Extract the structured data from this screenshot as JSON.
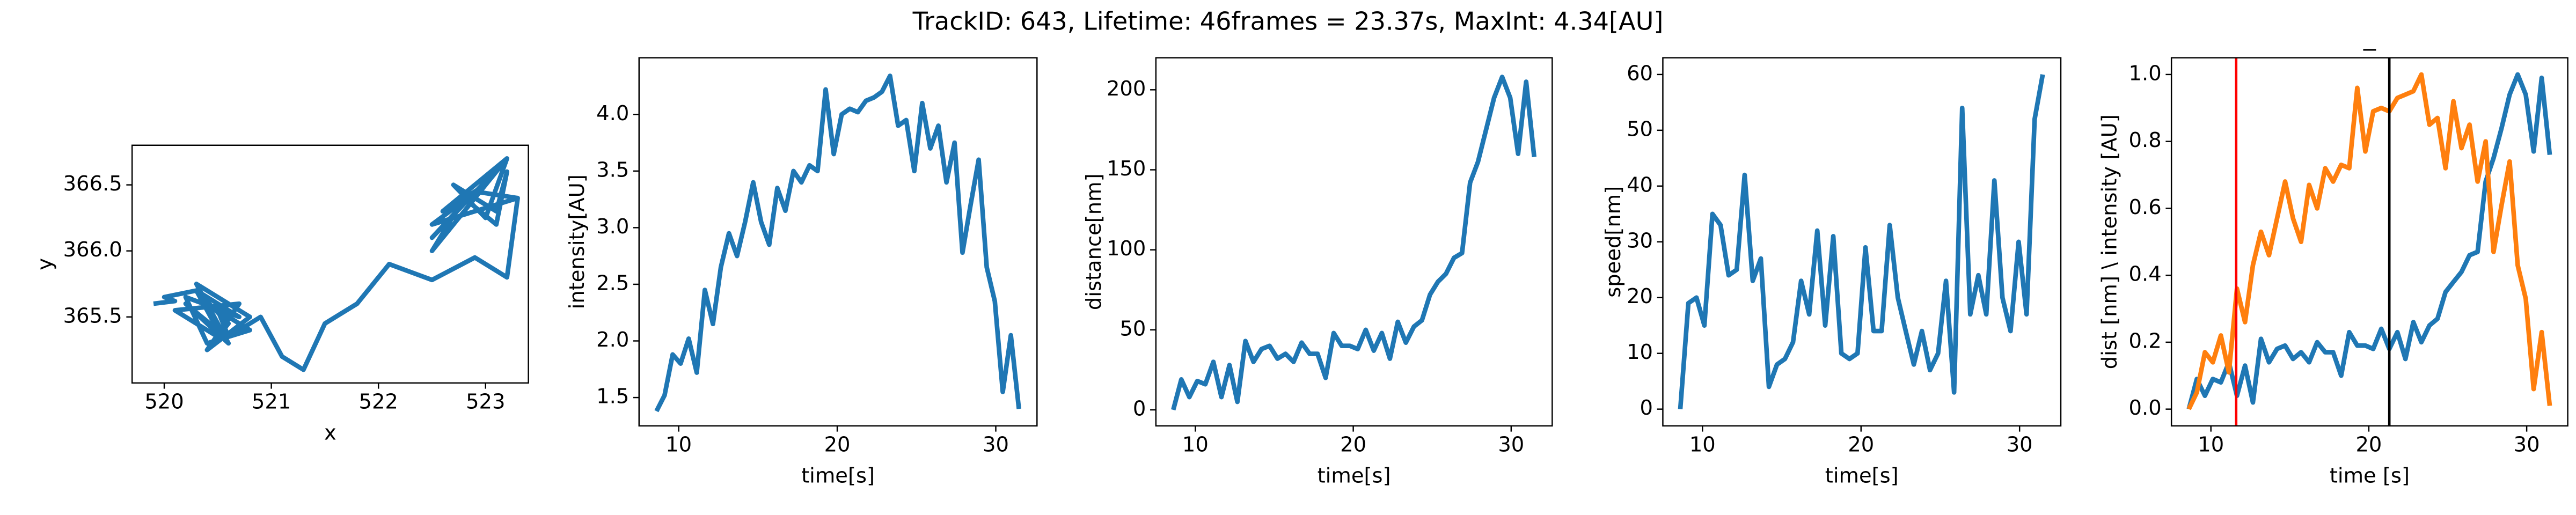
{
  "title": "TrackID: 643, Lifetime: 46frames = 23.37s, MaxInt: 4.34[AU]",
  "chart_data": [
    {
      "type": "line",
      "x_label": "x",
      "y_label": "y",
      "x": [
        519.9,
        520.1,
        520.0,
        520.3,
        520.5,
        520.2,
        520.6,
        520.3,
        520.8,
        520.4,
        520.7,
        520.1,
        520.5,
        520.6,
        520.3,
        520.7,
        520.2,
        520.4,
        520.8,
        520.5,
        520.6,
        520.9,
        521.1,
        521.3,
        521.5,
        521.8,
        522.1,
        522.5,
        522.9,
        523.2,
        523.3,
        522.5,
        523.0,
        522.6,
        523.2,
        522.5,
        522.8,
        523.1,
        523.2,
        523.1,
        522.7,
        523.0,
        523.2,
        522.5,
        522.9,
        523.3
      ],
      "series": [
        {
          "color": "#1f77b4",
          "values": [
            365.6,
            365.62,
            365.65,
            365.7,
            365.4,
            365.6,
            365.3,
            365.75,
            365.5,
            365.25,
            365.6,
            365.55,
            365.35,
            365.45,
            365.7,
            365.5,
            365.65,
            365.3,
            365.4,
            365.55,
            365.35,
            365.5,
            365.2,
            365.1,
            365.45,
            365.6,
            365.9,
            365.78,
            365.95,
            365.8,
            366.4,
            366.2,
            366.5,
            366.3,
            366.7,
            366.0,
            366.4,
            366.2,
            366.6,
            366.3,
            366.5,
            366.25,
            366.7,
            366.1,
            366.45,
            366.4
          ]
        }
      ],
      "xlim": [
        519.7,
        523.4
      ],
      "xticks": [
        520,
        521,
        522,
        523
      ],
      "ylim": [
        365.0,
        366.8
      ],
      "yticks": [
        365.5,
        {
          "value": 366,
          "label": "366.0"
        },
        366.5
      ]
    },
    {
      "type": "line",
      "x_label": "time[s]",
      "y_label": "intensity[AU]",
      "x": [
        8.6,
        9.11,
        9.62,
        10.12,
        10.63,
        11.14,
        11.65,
        12.16,
        12.66,
        13.17,
        13.68,
        14.19,
        14.7,
        15.2,
        15.71,
        16.22,
        16.73,
        17.24,
        17.74,
        18.25,
        18.76,
        19.27,
        19.78,
        20.28,
        20.79,
        21.3,
        21.81,
        22.32,
        22.82,
        23.33,
        23.84,
        24.35,
        24.86,
        25.36,
        25.87,
        26.38,
        26.89,
        27.4,
        27.9,
        28.41,
        28.92,
        29.43,
        29.94,
        30.44,
        30.95,
        31.46
      ],
      "series": [
        {
          "color": "#1f77b4",
          "values": [
            1.38,
            1.52,
            1.88,
            1.8,
            2.02,
            1.72,
            2.45,
            2.15,
            2.65,
            2.95,
            2.75,
            3.05,
            3.4,
            3.05,
            2.85,
            3.35,
            3.15,
            3.5,
            3.4,
            3.55,
            3.5,
            4.22,
            3.65,
            4.0,
            4.05,
            4.02,
            4.12,
            4.15,
            4.2,
            4.34,
            3.9,
            3.95,
            3.5,
            4.1,
            3.7,
            3.9,
            3.4,
            3.75,
            2.78,
            3.2,
            3.6,
            2.65,
            2.35,
            1.55,
            2.05,
            1.4
          ]
        }
      ],
      "xlim": [
        7.5,
        32.6
      ],
      "xticks": [
        10,
        20,
        30
      ],
      "ylim": [
        1.25,
        4.5
      ],
      "yticks": [
        1.5,
        {
          "value": 2,
          "label": "2.0"
        },
        2.5,
        {
          "value": 3,
          "label": "3.0"
        },
        3.5,
        {
          "value": 4,
          "label": "4.0"
        }
      ]
    },
    {
      "type": "line",
      "x_label": "time[s]",
      "y_label": "distance[nm]",
      "x": [
        8.6,
        9.11,
        9.62,
        10.12,
        10.63,
        11.14,
        11.65,
        12.16,
        12.66,
        13.17,
        13.68,
        14.19,
        14.7,
        15.2,
        15.71,
        16.22,
        16.73,
        17.24,
        17.74,
        18.25,
        18.76,
        19.27,
        19.78,
        20.28,
        20.79,
        21.3,
        21.81,
        22.32,
        22.82,
        23.33,
        23.84,
        24.35,
        24.86,
        25.36,
        25.87,
        26.38,
        26.89,
        27.4,
        27.9,
        28.41,
        28.92,
        29.43,
        29.94,
        30.44,
        30.95,
        31.46
      ],
      "series": [
        {
          "color": "#1f77b4",
          "values": [
            0,
            19,
            8,
            18,
            16,
            30,
            8,
            28,
            5,
            43,
            30,
            38,
            40,
            32,
            35,
            30,
            42,
            35,
            35,
            20,
            48,
            40,
            40,
            38,
            50,
            37,
            48,
            32,
            55,
            42,
            52,
            56,
            72,
            80,
            85,
            95,
            98,
            142,
            155,
            175,
            195,
            208,
            195,
            160,
            205,
            158
          ]
        }
      ],
      "xlim": [
        7.5,
        32.6
      ],
      "xticks": [
        10,
        20,
        30
      ],
      "ylim": [
        -10,
        220
      ],
      "yticks": [
        0,
        50,
        100,
        150,
        200
      ]
    },
    {
      "type": "line",
      "x_label": "time[s]",
      "y_label": "speed[nm]",
      "x": [
        8.6,
        9.11,
        9.62,
        10.12,
        10.63,
        11.14,
        11.65,
        12.16,
        12.66,
        13.17,
        13.68,
        14.19,
        14.7,
        15.2,
        15.71,
        16.22,
        16.73,
        17.24,
        17.74,
        18.25,
        18.76,
        19.27,
        19.78,
        20.28,
        20.79,
        21.3,
        21.81,
        22.32,
        22.82,
        23.33,
        23.84,
        24.35,
        24.86,
        25.36,
        25.87,
        26.38,
        26.89,
        27.4,
        27.9,
        28.41,
        28.92,
        29.43,
        29.94,
        30.44,
        30.95,
        31.46
      ],
      "series": [
        {
          "color": "#1f77b4",
          "values": [
            0,
            19,
            20,
            15,
            35,
            33,
            24,
            25,
            42,
            23,
            27,
            4,
            8,
            9,
            12,
            23,
            17,
            32,
            15,
            31,
            10,
            9,
            10,
            29,
            14,
            14,
            33,
            20,
            14,
            8,
            14,
            7,
            10,
            23,
            3,
            54,
            17,
            24,
            17,
            41,
            20,
            14,
            30,
            17,
            52,
            60
          ]
        }
      ],
      "xlim": [
        7.5,
        32.6
      ],
      "xticks": [
        10,
        20,
        30
      ],
      "ylim": [
        -3,
        63
      ],
      "yticks": [
        0,
        10,
        20,
        30,
        40,
        50,
        60
      ]
    },
    {
      "type": "line",
      "title": "_",
      "x_label": "time [s]",
      "y_label": "dist [nm] \\ intensity [AU]",
      "x": [
        8.6,
        9.11,
        9.62,
        10.12,
        10.63,
        11.14,
        11.65,
        12.16,
        12.66,
        13.17,
        13.68,
        14.19,
        14.7,
        15.2,
        15.71,
        16.22,
        16.73,
        17.24,
        17.74,
        18.25,
        18.76,
        19.27,
        19.78,
        20.28,
        20.79,
        21.3,
        21.81,
        22.32,
        22.82,
        23.33,
        23.84,
        24.35,
        24.86,
        25.36,
        25.87,
        26.38,
        26.89,
        27.4,
        27.9,
        28.41,
        28.92,
        29.43,
        29.94,
        30.44,
        30.95,
        31.46
      ],
      "series": [
        {
          "color": "#1f77b4",
          "values": [
            0,
            0.09,
            0.04,
            0.09,
            0.08,
            0.14,
            0.04,
            0.13,
            0.02,
            0.21,
            0.14,
            0.18,
            0.19,
            0.15,
            0.17,
            0.14,
            0.2,
            0.17,
            0.17,
            0.1,
            0.23,
            0.19,
            0.19,
            0.18,
            0.24,
            0.18,
            0.23,
            0.15,
            0.26,
            0.2,
            0.25,
            0.27,
            0.35,
            0.38,
            0.41,
            0.46,
            0.47,
            0.68,
            0.75,
            0.84,
            0.94,
            1.0,
            0.94,
            0.77,
            0.99,
            0.76
          ]
        },
        {
          "color": "#ff7f0e",
          "values": [
            0,
            0.05,
            0.17,
            0.14,
            0.22,
            0.11,
            0.36,
            0.26,
            0.43,
            0.53,
            0.46,
            0.57,
            0.68,
            0.57,
            0.5,
            0.67,
            0.6,
            0.72,
            0.68,
            0.73,
            0.72,
            0.96,
            0.77,
            0.89,
            0.9,
            0.89,
            0.93,
            0.94,
            0.95,
            1.0,
            0.85,
            0.87,
            0.72,
            0.92,
            0.78,
            0.85,
            0.68,
            0.8,
            0.47,
            0.61,
            0.74,
            0.43,
            0.33,
            0.06,
            0.23,
            0.01
          ]
        }
      ],
      "vlines": [
        {
          "value": 11.6,
          "color": "#ff0000"
        },
        {
          "value": 21.3,
          "color": "#000000"
        }
      ],
      "xlim": [
        7.5,
        32.6
      ],
      "xticks": [
        10,
        20,
        30
      ],
      "ylim": [
        -0.05,
        1.05
      ],
      "yticks": [
        {
          "value": 0,
          "label": "0.0"
        },
        0.2,
        0.4,
        0.6,
        0.8,
        {
          "value": 1,
          "label": "1.0"
        }
      ]
    }
  ]
}
